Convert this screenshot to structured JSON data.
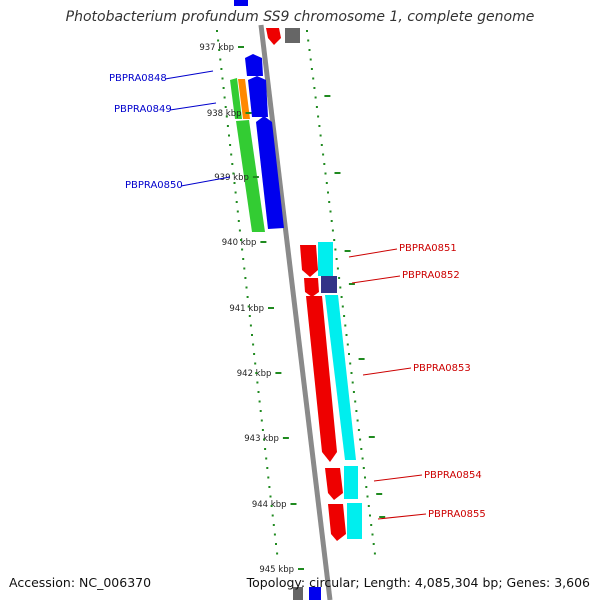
{
  "title": "Photobacterium profundum SS9 chromosome 1, complete genome",
  "footer": {
    "accession": "Accession: NC_006370",
    "summary": "Topology: circular; Length: 4,085,304 bp; Genes: 3,606"
  },
  "scale_labels": [
    "937 kbp",
    "938 kbp",
    "939 kbp",
    "940 kbp",
    "941 kbp",
    "942 kbp",
    "943 kbp",
    "944 kbp",
    "945 kbp"
  ],
  "genes_left": [
    {
      "id": "PBPRA0848",
      "color": "#0000cc"
    },
    {
      "id": "PBPRA0849",
      "color": "#0000cc"
    },
    {
      "id": "PBPRA0850",
      "color": "#0000cc"
    }
  ],
  "genes_right": [
    {
      "id": "PBPRA0851",
      "color": "#cc0000"
    },
    {
      "id": "PBPRA0852",
      "color": "#cc0000"
    },
    {
      "id": "PBPRA0853",
      "color": "#cc0000"
    },
    {
      "id": "PBPRA0854",
      "color": "#cc0000"
    },
    {
      "id": "PBPRA0855",
      "color": "#cc0000"
    }
  ],
  "colors": {
    "backbone": "#8a8a8a",
    "dots": "#1f8a1f",
    "gene_blue": "#0000ee",
    "gene_red": "#ee0000",
    "gene_green": "#33cc33",
    "gene_orange": "#ff8800",
    "gene_cyan": "#00eeee",
    "gene_navy": "#333388",
    "gene_gray": "#666666",
    "label_blue": "#0000cc",
    "label_red": "#cc0000"
  }
}
